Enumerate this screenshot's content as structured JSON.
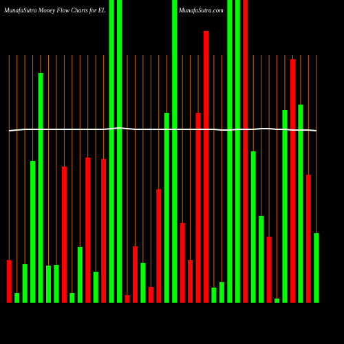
{
  "chart_data": {
    "type": "bar",
    "title": "MunafaSutra  Money Flow  Charts for EL",
    "source": "MunafaSutra.com",
    "categories": [
      null,
      null,
      null,
      null,
      null,
      null,
      null,
      null,
      null,
      null,
      null,
      null,
      null,
      null,
      null,
      null,
      null,
      null,
      null,
      null,
      null,
      null,
      null,
      null,
      null,
      null,
      null,
      null,
      null,
      null,
      null,
      null,
      null,
      null,
      null,
      null,
      null,
      null,
      null,
      null
    ],
    "values": [
      62,
      14,
      56,
      206,
      334,
      54,
      55,
      198,
      14,
      81,
      211,
      45,
      209,
      440,
      440,
      11,
      82,
      58,
      23,
      165,
      276,
      440,
      116,
      62,
      276,
      395,
      22,
      30,
      440,
      440,
      440,
      220,
      126,
      96,
      6,
      280,
      354,
      288,
      186,
      101
    ],
    "colors": [
      "#ff0000",
      "#00ff00",
      "#00ff00",
      "#00ff00",
      "#00ff00",
      "#00ff00",
      "#00ff00",
      "#ff0000",
      "#00ff00",
      "#00ff00",
      "#ff0000",
      "#00ff00",
      "#ff0000",
      "#00ff00",
      "#00ff00",
      "#ff0000",
      "#ff0000",
      "#00ff00",
      "#ff0000",
      "#ff0000",
      "#00ff00",
      "#00ff00",
      "#ff0000",
      "#ff0000",
      "#ff0000",
      "#ff0000",
      "#00ff00",
      "#00ff00",
      "#00ff00",
      "#00ff00",
      "#ff0000",
      "#00ff00",
      "#00ff00",
      "#ff0000",
      "#00ff00",
      "#00ff00",
      "#ff0000",
      "#00ff00",
      "#ff0000",
      "#00ff00"
    ],
    "line": {
      "color": "#ffffff",
      "values": [
        250,
        251,
        252,
        252,
        252,
        252,
        252,
        252,
        252,
        252,
        252,
        252,
        252,
        253,
        254,
        253,
        252,
        252,
        252,
        252,
        252,
        252,
        252,
        252,
        252,
        252,
        252,
        251,
        251,
        252,
        252,
        252,
        253,
        253,
        252,
        252,
        251,
        251,
        251,
        250
      ]
    },
    "ylim": [
      0,
      440
    ],
    "grid_color": "#cc6600"
  }
}
